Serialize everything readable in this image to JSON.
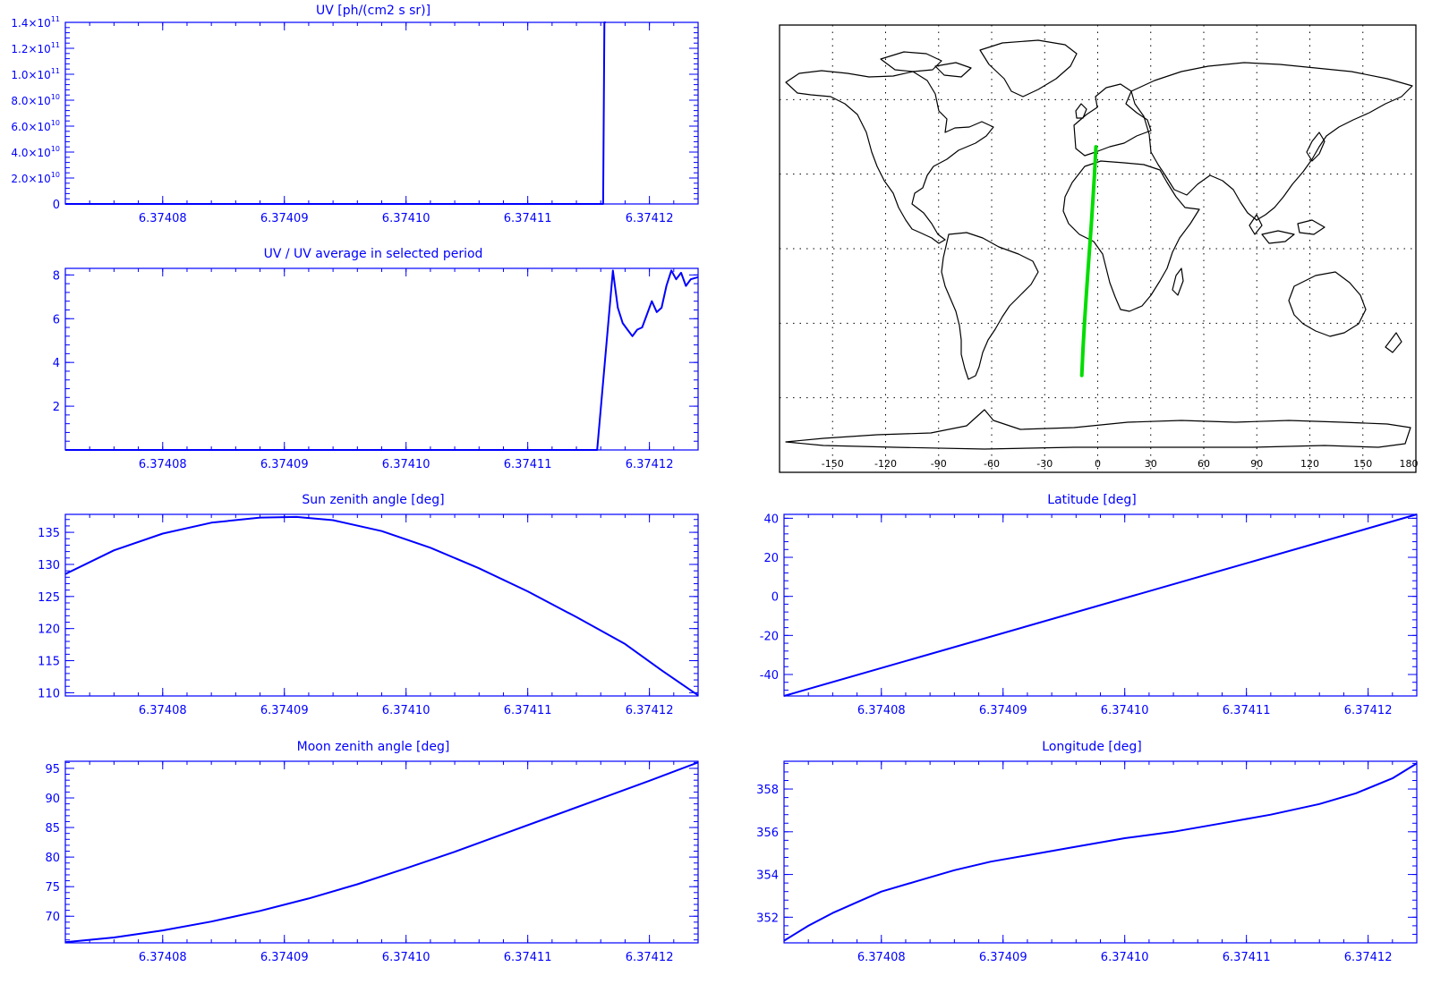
{
  "x_ticks": [
    "6.37408",
    "6.37409",
    "6.37410",
    "6.37411",
    "6.37412"
  ],
  "colors": {
    "axes": "#0000ff",
    "series": "#0000ff",
    "track": "#00dd00",
    "map": "#000000",
    "grid": "#000000"
  },
  "chart_data": [
    {
      "id": "uv",
      "type": "line",
      "title": "UV [ph/(cm2 s sr)]",
      "xlim": [
        6.374072,
        6.374124
      ],
      "ylim": [
        0,
        140000000000
      ],
      "x_ticks": [
        6.37408,
        6.37409,
        6.3741,
        6.37411,
        6.37412
      ],
      "y_ticks": [
        0,
        20000000000,
        40000000000,
        60000000000,
        80000000000,
        100000000000,
        120000000000,
        140000000000
      ],
      "y_tick_labels": [
        {
          "text": "0",
          "mant": "",
          "exp": ""
        },
        {
          "text": "",
          "mant": "2.0×10",
          "exp": "10"
        },
        {
          "text": "",
          "mant": "4.0×10",
          "exp": "10"
        },
        {
          "text": "",
          "mant": "6.0×10",
          "exp": "10"
        },
        {
          "text": "",
          "mant": "8.0×10",
          "exp": "10"
        },
        {
          "text": "",
          "mant": "1.0×10",
          "exp": "11"
        },
        {
          "text": "",
          "mant": "1.2×10",
          "exp": "11"
        },
        {
          "text": "",
          "mant": "1.4×10",
          "exp": "11"
        }
      ],
      "series": [
        {
          "x": [
            6.374072,
            6.3741162,
            6.3741163,
            6.3741164
          ],
          "y": [
            0,
            0,
            140000000000,
            140000000000
          ]
        }
      ]
    },
    {
      "id": "uv_ratio",
      "type": "line",
      "title": "UV / UV average in selected period",
      "xlim": [
        6.374072,
        6.374124
      ],
      "ylim": [
        0,
        8.3
      ],
      "x_ticks": [
        6.37408,
        6.37409,
        6.3741,
        6.37411,
        6.37412
      ],
      "y_ticks": [
        2,
        4,
        6,
        8
      ],
      "series": [
        {
          "x": [
            6.374072,
            6.3741157,
            6.374117,
            6.3741174,
            6.3741178,
            6.3741182,
            6.3741186,
            6.374119,
            6.3741194,
            6.3741198,
            6.3741202,
            6.3741206,
            6.374121,
            6.3741214,
            6.3741218,
            6.3741222,
            6.3741226,
            6.374123,
            6.3741234,
            6.374124
          ],
          "y": [
            0,
            0,
            8.2,
            6.5,
            5.8,
            5.5,
            5.2,
            5.5,
            5.6,
            6.2,
            6.8,
            6.3,
            6.5,
            7.5,
            8.2,
            7.8,
            8.1,
            7.5,
            7.8,
            7.9
          ]
        }
      ]
    },
    {
      "id": "sun",
      "type": "line",
      "title": "Sun zenith angle [deg]",
      "xlim": [
        6.374072,
        6.374124
      ],
      "ylim": [
        109.5,
        137.8
      ],
      "x_ticks": [
        6.37408,
        6.37409,
        6.3741,
        6.37411,
        6.37412
      ],
      "y_ticks": [
        110,
        115,
        120,
        125,
        130,
        135
      ],
      "series": [
        {
          "x": [
            6.374072,
            6.374076,
            6.37408,
            6.374084,
            6.374088,
            6.374091,
            6.374094,
            6.374098,
            6.374102,
            6.374106,
            6.37411,
            6.374114,
            6.374118,
            6.374121,
            6.374124
          ],
          "y": [
            128.5,
            132.2,
            134.8,
            136.5,
            137.3,
            137.4,
            136.9,
            135.2,
            132.6,
            129.4,
            125.8,
            121.8,
            117.6,
            113.5,
            109.6
          ]
        }
      ]
    },
    {
      "id": "lat",
      "type": "line",
      "title": "Latitude [deg]",
      "xlim": [
        6.374072,
        6.374124
      ],
      "ylim": [
        -51,
        42
      ],
      "x_ticks": [
        6.37408,
        6.37409,
        6.3741,
        6.37411,
        6.37412
      ],
      "y_ticks": [
        -40,
        -20,
        0,
        20,
        40
      ],
      "series": [
        {
          "x": [
            6.374072,
            6.374124
          ],
          "y": [
            -51,
            42
          ]
        }
      ]
    },
    {
      "id": "moon",
      "type": "line",
      "title": "Moon zenith angle [deg]",
      "xlim": [
        6.374072,
        6.374124
      ],
      "ylim": [
        65.5,
        96.2
      ],
      "x_ticks": [
        6.37408,
        6.37409,
        6.3741,
        6.37411,
        6.37412
      ],
      "y_ticks": [
        70,
        75,
        80,
        85,
        90,
        95
      ],
      "series": [
        {
          "x": [
            6.374072,
            6.374076,
            6.37408,
            6.374084,
            6.374088,
            6.374092,
            6.374096,
            6.3741,
            6.374104,
            6.374108,
            6.374112,
            6.374116,
            6.37412,
            6.374124
          ],
          "y": [
            65.6,
            66.4,
            67.6,
            69.1,
            70.9,
            73.0,
            75.4,
            78.1,
            80.9,
            83.9,
            86.9,
            89.9,
            92.9,
            96.0
          ]
        }
      ]
    },
    {
      "id": "lon",
      "type": "line",
      "title": "Longitude [deg]",
      "xlim": [
        6.374072,
        6.374124
      ],
      "ylim": [
        350.8,
        359.3
      ],
      "x_ticks": [
        6.37408,
        6.37409,
        6.3741,
        6.37411,
        6.37412
      ],
      "y_ticks": [
        352,
        354,
        356,
        358
      ],
      "series": [
        {
          "x": [
            6.374072,
            6.374074,
            6.374076,
            6.374078,
            6.37408,
            6.374083,
            6.374086,
            6.374089,
            6.374092,
            6.374096,
            6.3741,
            6.374104,
            6.374108,
            6.374112,
            6.374116,
            6.374119,
            6.374122,
            6.374124
          ],
          "y": [
            350.9,
            351.6,
            352.2,
            352.7,
            353.2,
            353.7,
            354.2,
            354.6,
            354.9,
            355.3,
            355.7,
            356.0,
            356.4,
            356.8,
            357.3,
            357.8,
            358.5,
            359.2
          ]
        }
      ]
    },
    {
      "id": "map",
      "type": "map",
      "lon_range": [
        -180,
        180
      ],
      "lat_range": [
        -90,
        90
      ],
      "lon_ticks": [
        -150,
        -120,
        -90,
        -60,
        -30,
        0,
        30,
        60,
        90,
        120,
        150,
        180
      ],
      "lat_grid": [
        -60,
        -30,
        0,
        30,
        60
      ],
      "track": {
        "lon": [
          -9,
          -8.3,
          -7.5,
          -6.6,
          -5.6,
          -4.6,
          -3.6,
          -2.7,
          -1.8,
          -1
        ],
        "lat": [
          -51,
          -40,
          -30,
          -20,
          -10,
          0,
          10,
          20,
          30,
          41
        ]
      }
    }
  ]
}
